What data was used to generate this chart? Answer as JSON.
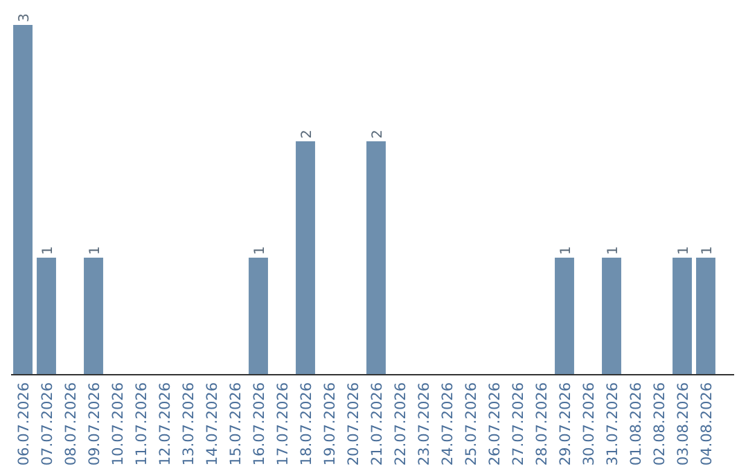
{
  "chart_data": {
    "type": "bar",
    "categories": [
      "06.07.2026",
      "07.07.2026",
      "08.07.2026",
      "09.07.2026",
      "10.07.2026",
      "11.07.2026",
      "12.07.2026",
      "13.07.2026",
      "14.07.2026",
      "15.07.2026",
      "16.07.2026",
      "17.07.2026",
      "18.07.2026",
      "19.07.2026",
      "20.07.2026",
      "21.07.2026",
      "22.07.2026",
      "23.07.2026",
      "24.07.2026",
      "25.07.2026",
      "26.07.2026",
      "27.07.2026",
      "28.07.2026",
      "29.07.2026",
      "30.07.2026",
      "31.07.2026",
      "01.08.2026",
      "02.08.2026",
      "03.08.2026",
      "04.08.2026"
    ],
    "values": [
      3,
      1,
      0,
      1,
      0,
      0,
      0,
      0,
      0,
      0,
      1,
      0,
      2,
      0,
      0,
      2,
      0,
      0,
      0,
      0,
      0,
      0,
      0,
      1,
      0,
      1,
      0,
      0,
      1,
      1
    ],
    "value_labels": [
      "3",
      "1",
      null,
      "1",
      null,
      null,
      null,
      null,
      null,
      null,
      "1",
      null,
      "2",
      null,
      null,
      "2",
      null,
      null,
      null,
      null,
      null,
      null,
      null,
      "1",
      null,
      "1",
      null,
      null,
      "1",
      "1"
    ],
    "color": "#6e8fae",
    "tick_labels": "x"
  }
}
